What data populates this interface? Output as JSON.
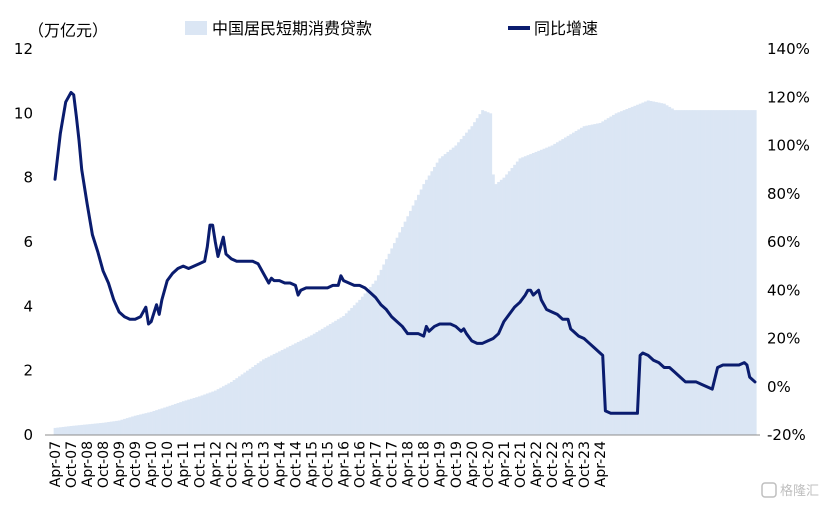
{
  "chart_data": {
    "type": "bar+line",
    "unit_label": "（万亿元）",
    "watermark": "格隆汇",
    "colors": {
      "area": "#dbe6f4",
      "line": "#0a1c6e"
    },
    "x_labels": [
      "Apr-07",
      "Oct-07",
      "Apr-08",
      "Oct-08",
      "Apr-09",
      "Oct-09",
      "Apr-10",
      "Oct-10",
      "Apr-11",
      "Oct-11",
      "Apr-12",
      "Oct-12",
      "Apr-13",
      "Oct-13",
      "Apr-14",
      "Oct-14",
      "Apr-15",
      "Oct-15",
      "Apr-16",
      "Oct-16",
      "Apr-17",
      "Oct-17",
      "Apr-18",
      "Oct-18",
      "Apr-19",
      "Oct-19",
      "Apr-20",
      "Oct-20",
      "Apr-21",
      "Oct-21",
      "Apr-22",
      "Oct-22",
      "Apr-23",
      "Oct-23",
      "Apr-24"
    ],
    "y_left": {
      "min": 0,
      "max": 12,
      "ticks": [
        "0",
        "2",
        "4",
        "6",
        "8",
        "10",
        "12"
      ]
    },
    "y_right": {
      "min": -20,
      "max": 140,
      "ticks": [
        "-20%",
        "0%",
        "20%",
        "40%",
        "60%",
        "80%",
        "100%",
        "120%",
        "140%"
      ]
    },
    "series": [
      {
        "name": "中国居民短期消费贷款",
        "type": "bar",
        "axis": "left",
        "points": [
          [
            0,
            0.22
          ],
          [
            6,
            0.28
          ],
          [
            12,
            0.33
          ],
          [
            18,
            0.38
          ],
          [
            24,
            0.45
          ],
          [
            30,
            0.6
          ],
          [
            36,
            0.72
          ],
          [
            42,
            0.88
          ],
          [
            48,
            1.05
          ],
          [
            54,
            1.2
          ],
          [
            60,
            1.38
          ],
          [
            66,
            1.65
          ],
          [
            72,
            2.0
          ],
          [
            78,
            2.35
          ],
          [
            84,
            2.6
          ],
          [
            90,
            2.85
          ],
          [
            96,
            3.1
          ],
          [
            102,
            3.4
          ],
          [
            108,
            3.7
          ],
          [
            114,
            4.2
          ],
          [
            120,
            4.8
          ],
          [
            126,
            5.8
          ],
          [
            132,
            6.8
          ],
          [
            138,
            7.8
          ],
          [
            144,
            8.6
          ],
          [
            150,
            9.0
          ],
          [
            156,
            9.6
          ],
          [
            160,
            10.1
          ],
          [
            163,
            10.0
          ],
          [
            164,
            8.1
          ],
          [
            165,
            7.8
          ],
          [
            168,
            8.0
          ],
          [
            174,
            8.6
          ],
          [
            180,
            8.8
          ],
          [
            186,
            9.0
          ],
          [
            192,
            9.3
          ],
          [
            198,
            9.6
          ],
          [
            204,
            9.7
          ],
          [
            210,
            10.0
          ],
          [
            216,
            10.2
          ],
          [
            222,
            10.4
          ],
          [
            228,
            10.3
          ],
          [
            232,
            10.1
          ]
        ]
      },
      {
        "name": "同比增速",
        "type": "line",
        "axis": "right",
        "points": [
          [
            0,
            86
          ],
          [
            2,
            105
          ],
          [
            4,
            118
          ],
          [
            6,
            122
          ],
          [
            7,
            121
          ],
          [
            8,
            112
          ],
          [
            9,
            102
          ],
          [
            10,
            90
          ],
          [
            12,
            76
          ],
          [
            14,
            63
          ],
          [
            16,
            56
          ],
          [
            18,
            48
          ],
          [
            20,
            43
          ],
          [
            22,
            36
          ],
          [
            24,
            31
          ],
          [
            26,
            29
          ],
          [
            28,
            28
          ],
          [
            30,
            28
          ],
          [
            32,
            29
          ],
          [
            34,
            33
          ],
          [
            35,
            26
          ],
          [
            36,
            27
          ],
          [
            38,
            34
          ],
          [
            39,
            30
          ],
          [
            40,
            36
          ],
          [
            42,
            44
          ],
          [
            44,
            47
          ],
          [
            46,
            49
          ],
          [
            48,
            50
          ],
          [
            50,
            49
          ],
          [
            52,
            50
          ],
          [
            54,
            51
          ],
          [
            56,
            52
          ],
          [
            57,
            58
          ],
          [
            58,
            67
          ],
          [
            59,
            67
          ],
          [
            60,
            60
          ],
          [
            61,
            54
          ],
          [
            62,
            58
          ],
          [
            63,
            62
          ],
          [
            64,
            55
          ],
          [
            66,
            53
          ],
          [
            68,
            52
          ],
          [
            70,
            52
          ],
          [
            72,
            52
          ],
          [
            74,
            52
          ],
          [
            76,
            51
          ],
          [
            78,
            47
          ],
          [
            80,
            43
          ],
          [
            81,
            45
          ],
          [
            82,
            44
          ],
          [
            84,
            44
          ],
          [
            86,
            43
          ],
          [
            88,
            43
          ],
          [
            90,
            42
          ],
          [
            91,
            38
          ],
          [
            92,
            40
          ],
          [
            94,
            41
          ],
          [
            96,
            41
          ],
          [
            98,
            41
          ],
          [
            100,
            41
          ],
          [
            102,
            41
          ],
          [
            104,
            42
          ],
          [
            106,
            42
          ],
          [
            107,
            46
          ],
          [
            108,
            44
          ],
          [
            110,
            43
          ],
          [
            112,
            42
          ],
          [
            114,
            42
          ],
          [
            116,
            41
          ],
          [
            118,
            39
          ],
          [
            120,
            37
          ],
          [
            122,
            34
          ],
          [
            124,
            32
          ],
          [
            126,
            29
          ],
          [
            128,
            27
          ],
          [
            130,
            25
          ],
          [
            132,
            22
          ],
          [
            134,
            22
          ],
          [
            136,
            22
          ],
          [
            138,
            21
          ],
          [
            139,
            25
          ],
          [
            140,
            23
          ],
          [
            142,
            25
          ],
          [
            144,
            26
          ],
          [
            146,
            26
          ],
          [
            148,
            26
          ],
          [
            150,
            25
          ],
          [
            152,
            23
          ],
          [
            153,
            24
          ],
          [
            154,
            22
          ],
          [
            156,
            19
          ],
          [
            158,
            18
          ],
          [
            160,
            18
          ],
          [
            162,
            19
          ],
          [
            164,
            20
          ],
          [
            166,
            22
          ],
          [
            168,
            27
          ],
          [
            170,
            30
          ],
          [
            172,
            33
          ],
          [
            174,
            35
          ],
          [
            176,
            38
          ],
          [
            177,
            40
          ],
          [
            178,
            40
          ],
          [
            179,
            38
          ],
          [
            180,
            39
          ],
          [
            181,
            40
          ],
          [
            182,
            36
          ],
          [
            184,
            32
          ],
          [
            186,
            31
          ],
          [
            188,
            30
          ],
          [
            190,
            28
          ],
          [
            192,
            28
          ],
          [
            193,
            24
          ],
          [
            194,
            23
          ],
          [
            196,
            21
          ],
          [
            198,
            20
          ],
          [
            200,
            18
          ],
          [
            202,
            16
          ],
          [
            204,
            14
          ],
          [
            205,
            13
          ],
          [
            206,
            -10
          ],
          [
            208,
            -11
          ],
          [
            210,
            -11
          ],
          [
            212,
            -11
          ],
          [
            214,
            -11
          ],
          [
            216,
            -11
          ],
          [
            218,
            -11
          ],
          [
            219,
            13
          ],
          [
            220,
            14
          ],
          [
            222,
            13
          ],
          [
            224,
            11
          ],
          [
            226,
            10
          ],
          [
            228,
            8
          ],
          [
            230,
            8
          ],
          [
            232,
            6
          ],
          [
            234,
            4
          ],
          [
            236,
            2
          ],
          [
            238,
            2
          ],
          [
            240,
            2
          ],
          [
            242,
            1
          ],
          [
            244,
            0
          ],
          [
            246,
            -1
          ],
          [
            248,
            8
          ],
          [
            250,
            9
          ],
          [
            252,
            9
          ],
          [
            254,
            9
          ],
          [
            256,
            9
          ],
          [
            258,
            10
          ],
          [
            259,
            9
          ],
          [
            260,
            4
          ],
          [
            262,
            2
          ]
        ]
      }
    ]
  }
}
